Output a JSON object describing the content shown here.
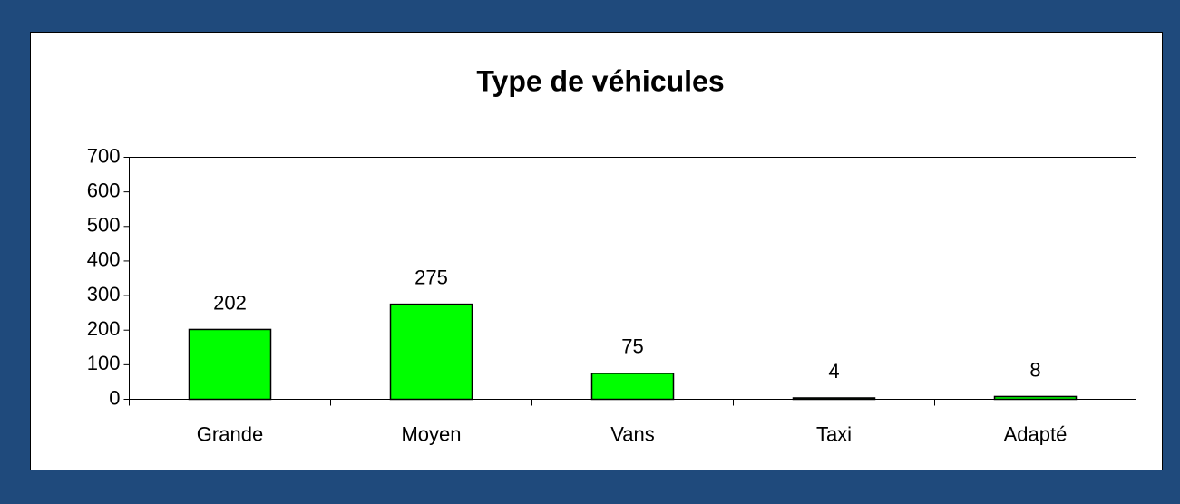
{
  "chart_data": {
    "type": "bar",
    "title": "Type de véhicules",
    "categories": [
      "Grande",
      "Moyen",
      "Vans",
      "Taxi",
      "Adapté"
    ],
    "values": [
      202,
      275,
      75,
      4,
      8
    ],
    "color": "#00ff00",
    "ylim": [
      0,
      700
    ],
    "yticks": [
      0,
      100,
      200,
      300,
      400,
      500,
      600,
      700
    ],
    "grid": false
  }
}
